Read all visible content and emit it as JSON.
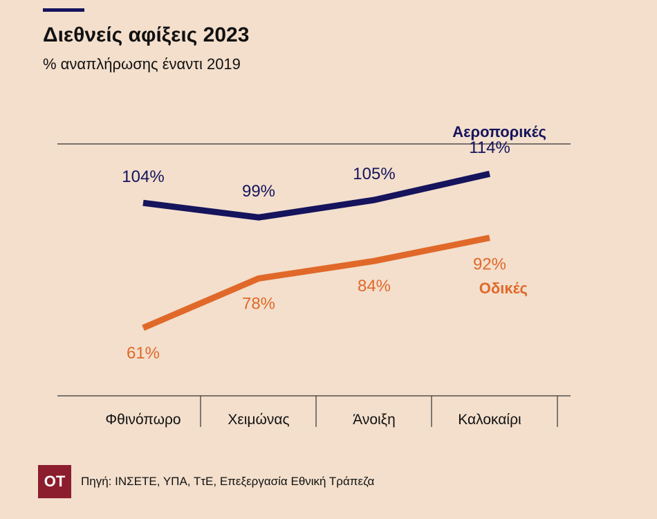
{
  "header": {
    "title": "Διεθνείς αφίξεις 2023",
    "subtitle": "% αναπλήρωσης έναντι 2019"
  },
  "footer": {
    "logo_text": "ΟΤ",
    "source": "Πηγή: ΙΝΣΕΤΕ, ΥΠΑ, ΤτΕ, Επεξεργασία Εθνική Τράπεζα"
  },
  "colors": {
    "air": "#15145c",
    "road": "#e0692a",
    "background": "#f3dfcc",
    "logo": "#8c1d2e"
  },
  "chart_data": {
    "type": "line",
    "title": "Διεθνείς αφίξεις 2023",
    "subtitle": "% αναπλήρωσης έναντι 2019",
    "categories": [
      "Φθινόπωρο",
      "Χειμώνας",
      "Άνοιξη",
      "Καλοκαίρι"
    ],
    "series": [
      {
        "name": "Αεροπορικές",
        "values": [
          104,
          99,
          105,
          114
        ],
        "labels": [
          "104%",
          "99%",
          "105%",
          "114%"
        ],
        "color": "#15145c"
      },
      {
        "name": "Οδικές",
        "values": [
          61,
          78,
          84,
          92
        ],
        "labels": [
          "61%",
          "78%",
          "84%",
          "92%"
        ],
        "color": "#e0692a"
      }
    ],
    "ylim": [
      40,
      130
    ],
    "grid": false,
    "legend": "inline labels near line ends"
  }
}
